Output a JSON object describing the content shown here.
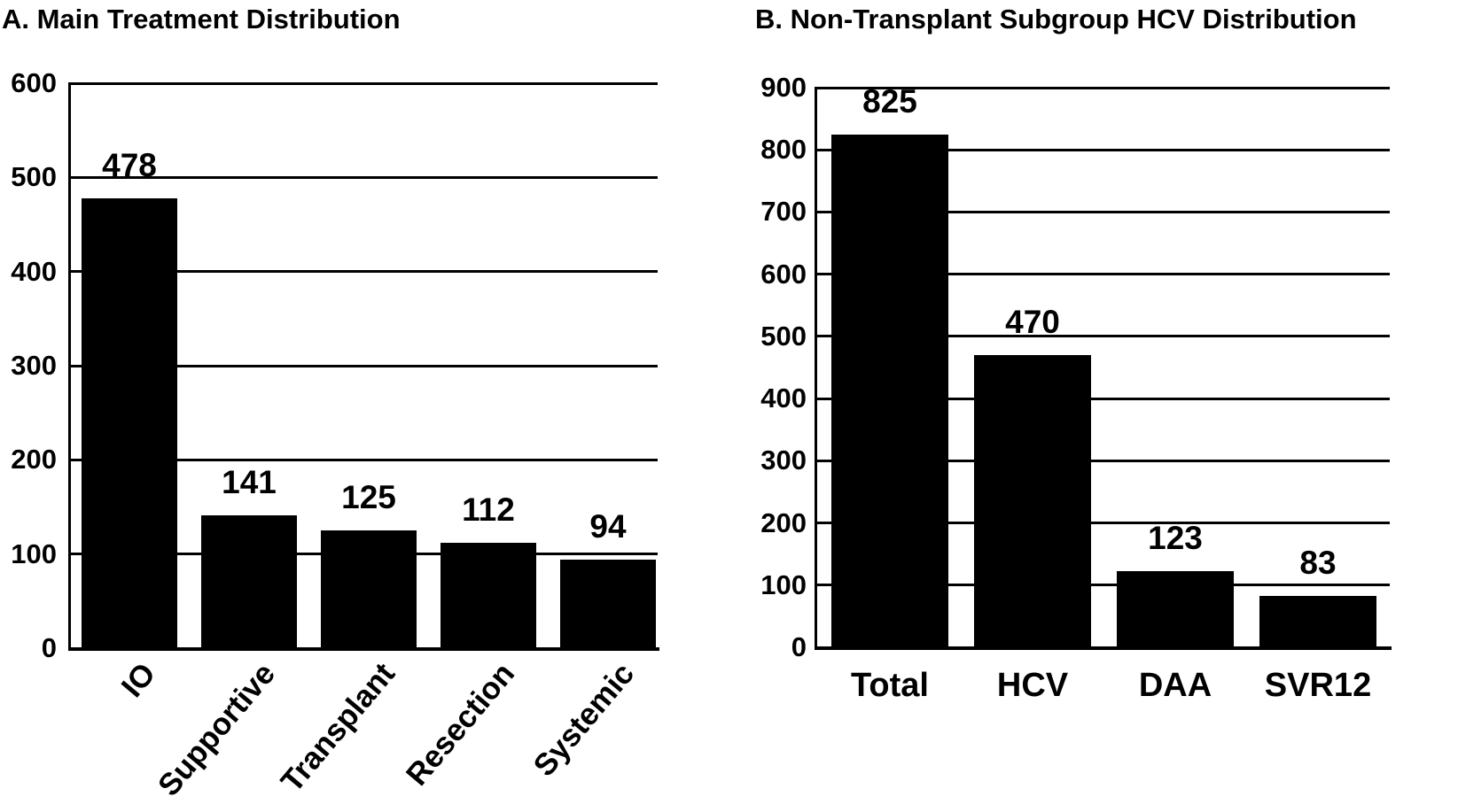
{
  "figure": {
    "background_color": "#ffffff",
    "foreground_color": "#000000",
    "bar_color": "#000000"
  },
  "chart_data": [
    {
      "panel": "A",
      "type": "bar",
      "title": "A. Main Treatment Distribution",
      "categories": [
        "IO",
        "Supportive",
        "Transplant",
        "Resection",
        "Systemic"
      ],
      "values": [
        478,
        141,
        125,
        112,
        94
      ],
      "xlabel": "",
      "ylabel": "",
      "ylim": [
        0,
        600
      ],
      "yticks": [
        0,
        100,
        200,
        300,
        400,
        500,
        600
      ],
      "grid": "horizontal",
      "legend": "none",
      "bar_color": "#000000",
      "value_labels_shown": true,
      "x_tick_rotation_deg": 50
    },
    {
      "panel": "B",
      "type": "bar",
      "title": "B. Non-Transplant Subgroup HCV Distribution",
      "categories": [
        "Total",
        "HCV",
        "DAA",
        "SVR12"
      ],
      "values": [
        825,
        470,
        123,
        83
      ],
      "xlabel": "",
      "ylabel": "",
      "ylim": [
        0,
        900
      ],
      "yticks": [
        0,
        100,
        200,
        300,
        400,
        500,
        600,
        700,
        800,
        900
      ],
      "grid": "horizontal",
      "legend": "none",
      "bar_color": "#000000",
      "value_labels_shown": true,
      "x_tick_rotation_deg": 0
    }
  ]
}
